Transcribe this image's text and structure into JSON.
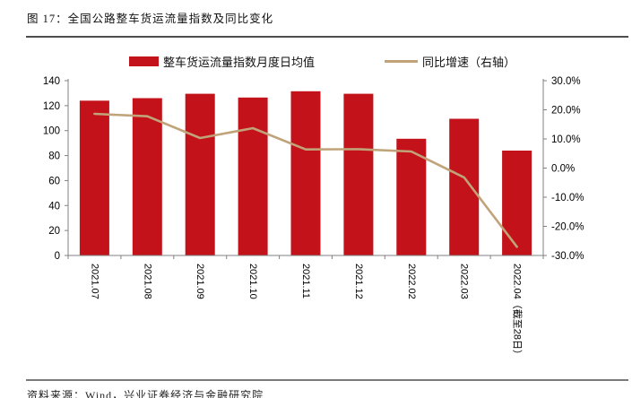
{
  "figure": {
    "title": "图 17：全国公路整车货运流量指数及同比变化"
  },
  "source_note": "资料来源：Wind，兴业证券经济与金融研究院",
  "colors": {
    "bar_red": "#c3121a",
    "line_tan": "#c1a379",
    "axis_gray": "#808080",
    "rule_dark": "#4d4d4d",
    "rule_light": "#7a7a7a"
  },
  "chart_data": {
    "type": "bar+line",
    "title": "全国公路整车货运流量指数及同比变化",
    "grid": false,
    "legend_position": "top",
    "categories": [
      "2021.07",
      "2021.08",
      "2021.09",
      "2021.10",
      "2021.11",
      "2021.12",
      "2022.02",
      "2022.03",
      "2022.04（截至28日）"
    ],
    "series": [
      {
        "name": "整车货运流量指数月度日均值",
        "chart_type": "bar",
        "axis": "left",
        "color": "#c3121a",
        "values": [
          124,
          126,
          129.5,
          126.5,
          131.5,
          129.5,
          93.5,
          109.5,
          84
        ]
      },
      {
        "name": "同比增速（右轴）",
        "chart_type": "line",
        "axis": "right",
        "color": "#c1a379",
        "values": [
          18.6,
          17.8,
          10.3,
          13.7,
          6.4,
          6.5,
          5.7,
          -3.2,
          -27.0
        ]
      }
    ],
    "left_axis": {
      "min": 0,
      "max": 140,
      "tick_values": [
        0,
        20,
        40,
        60,
        80,
        100,
        120,
        140
      ],
      "tick_labels": [
        "0",
        "20",
        "40",
        "60",
        "80",
        "100",
        "120",
        "140"
      ]
    },
    "right_axis": {
      "min": -30,
      "max": 30,
      "unit": "percent",
      "tick_values": [
        30,
        20,
        10,
        0,
        -10,
        -20,
        -30
      ],
      "tick_labels": [
        "30.0%",
        "20.0%",
        "10.0%",
        "0.0%",
        "-10.0%",
        "-20.0%",
        "-30.0%"
      ]
    }
  }
}
